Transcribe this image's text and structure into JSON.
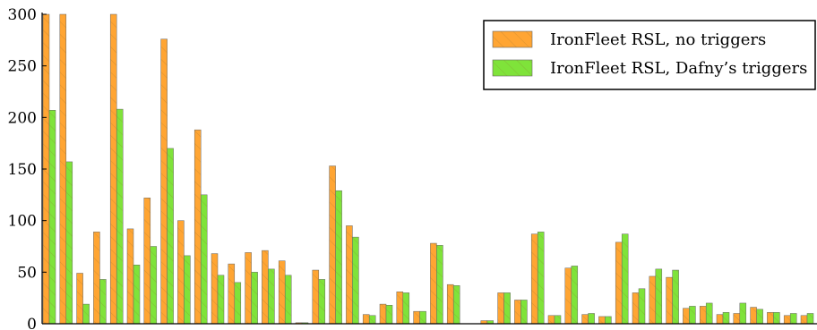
{
  "chart_data": {
    "type": "bar",
    "ylim": [
      0,
      300
    ],
    "yticks": [
      0,
      50,
      100,
      150,
      200,
      250,
      300
    ],
    "grid": false,
    "legend_position": "top-right",
    "series": [
      {
        "name": "IronFleet RSL, no triggers",
        "color": "#ffa533",
        "values": [
          300,
          300,
          49,
          89,
          300,
          92,
          122,
          276,
          100,
          188,
          68,
          58,
          69,
          71,
          61,
          1,
          52,
          153,
          95,
          9,
          19,
          31,
          12,
          78,
          38,
          0,
          3,
          30,
          23,
          87,
          8,
          54,
          9,
          7,
          79,
          30,
          46,
          45,
          15,
          17,
          9,
          10,
          16,
          11,
          8,
          8,
          9,
          9
        ]
      },
      {
        "name": "IronFleet RSL, Dafny’s triggers",
        "color": "#7fe33a",
        "values": [
          207,
          157,
          19,
          43,
          208,
          57,
          75,
          170,
          66,
          125,
          47,
          40,
          50,
          53,
          47,
          1,
          43,
          129,
          84,
          8,
          18,
          30,
          12,
          76,
          37,
          0,
          3,
          30,
          23,
          89,
          8,
          56,
          10,
          7,
          87,
          34,
          53,
          52,
          17,
          20,
          11,
          20,
          14,
          11,
          10,
          10,
          11,
          0
        ]
      }
    ]
  }
}
